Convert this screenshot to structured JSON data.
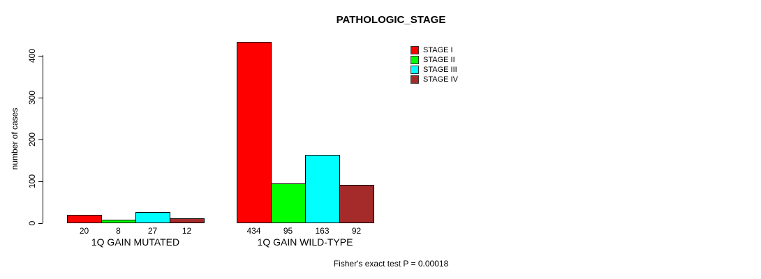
{
  "chart_data": {
    "type": "bar",
    "title": "PATHOLOGIC_STAGE",
    "xlabel": "",
    "ylabel": "number of cases",
    "ylim": [
      0,
      400
    ],
    "yticks": [
      0,
      100,
      200,
      300,
      400
    ],
    "categories": [
      "1Q GAIN MUTATED",
      "1Q GAIN WILD-TYPE"
    ],
    "series": [
      {
        "name": "STAGE I",
        "color": "#FF0000",
        "values": [
          20,
          434
        ]
      },
      {
        "name": "STAGE II",
        "color": "#00FF00",
        "values": [
          8,
          95
        ]
      },
      {
        "name": "STAGE III",
        "color": "#00FFFF",
        "values": [
          27,
          163
        ]
      },
      {
        "name": "STAGE IV",
        "color": "#A52A2A",
        "values": [
          12,
          92
        ]
      }
    ],
    "show_value_labels": true,
    "grid": false,
    "legend_position": "top-right",
    "annotation": "Fisher's exact test P = 0.00018"
  }
}
